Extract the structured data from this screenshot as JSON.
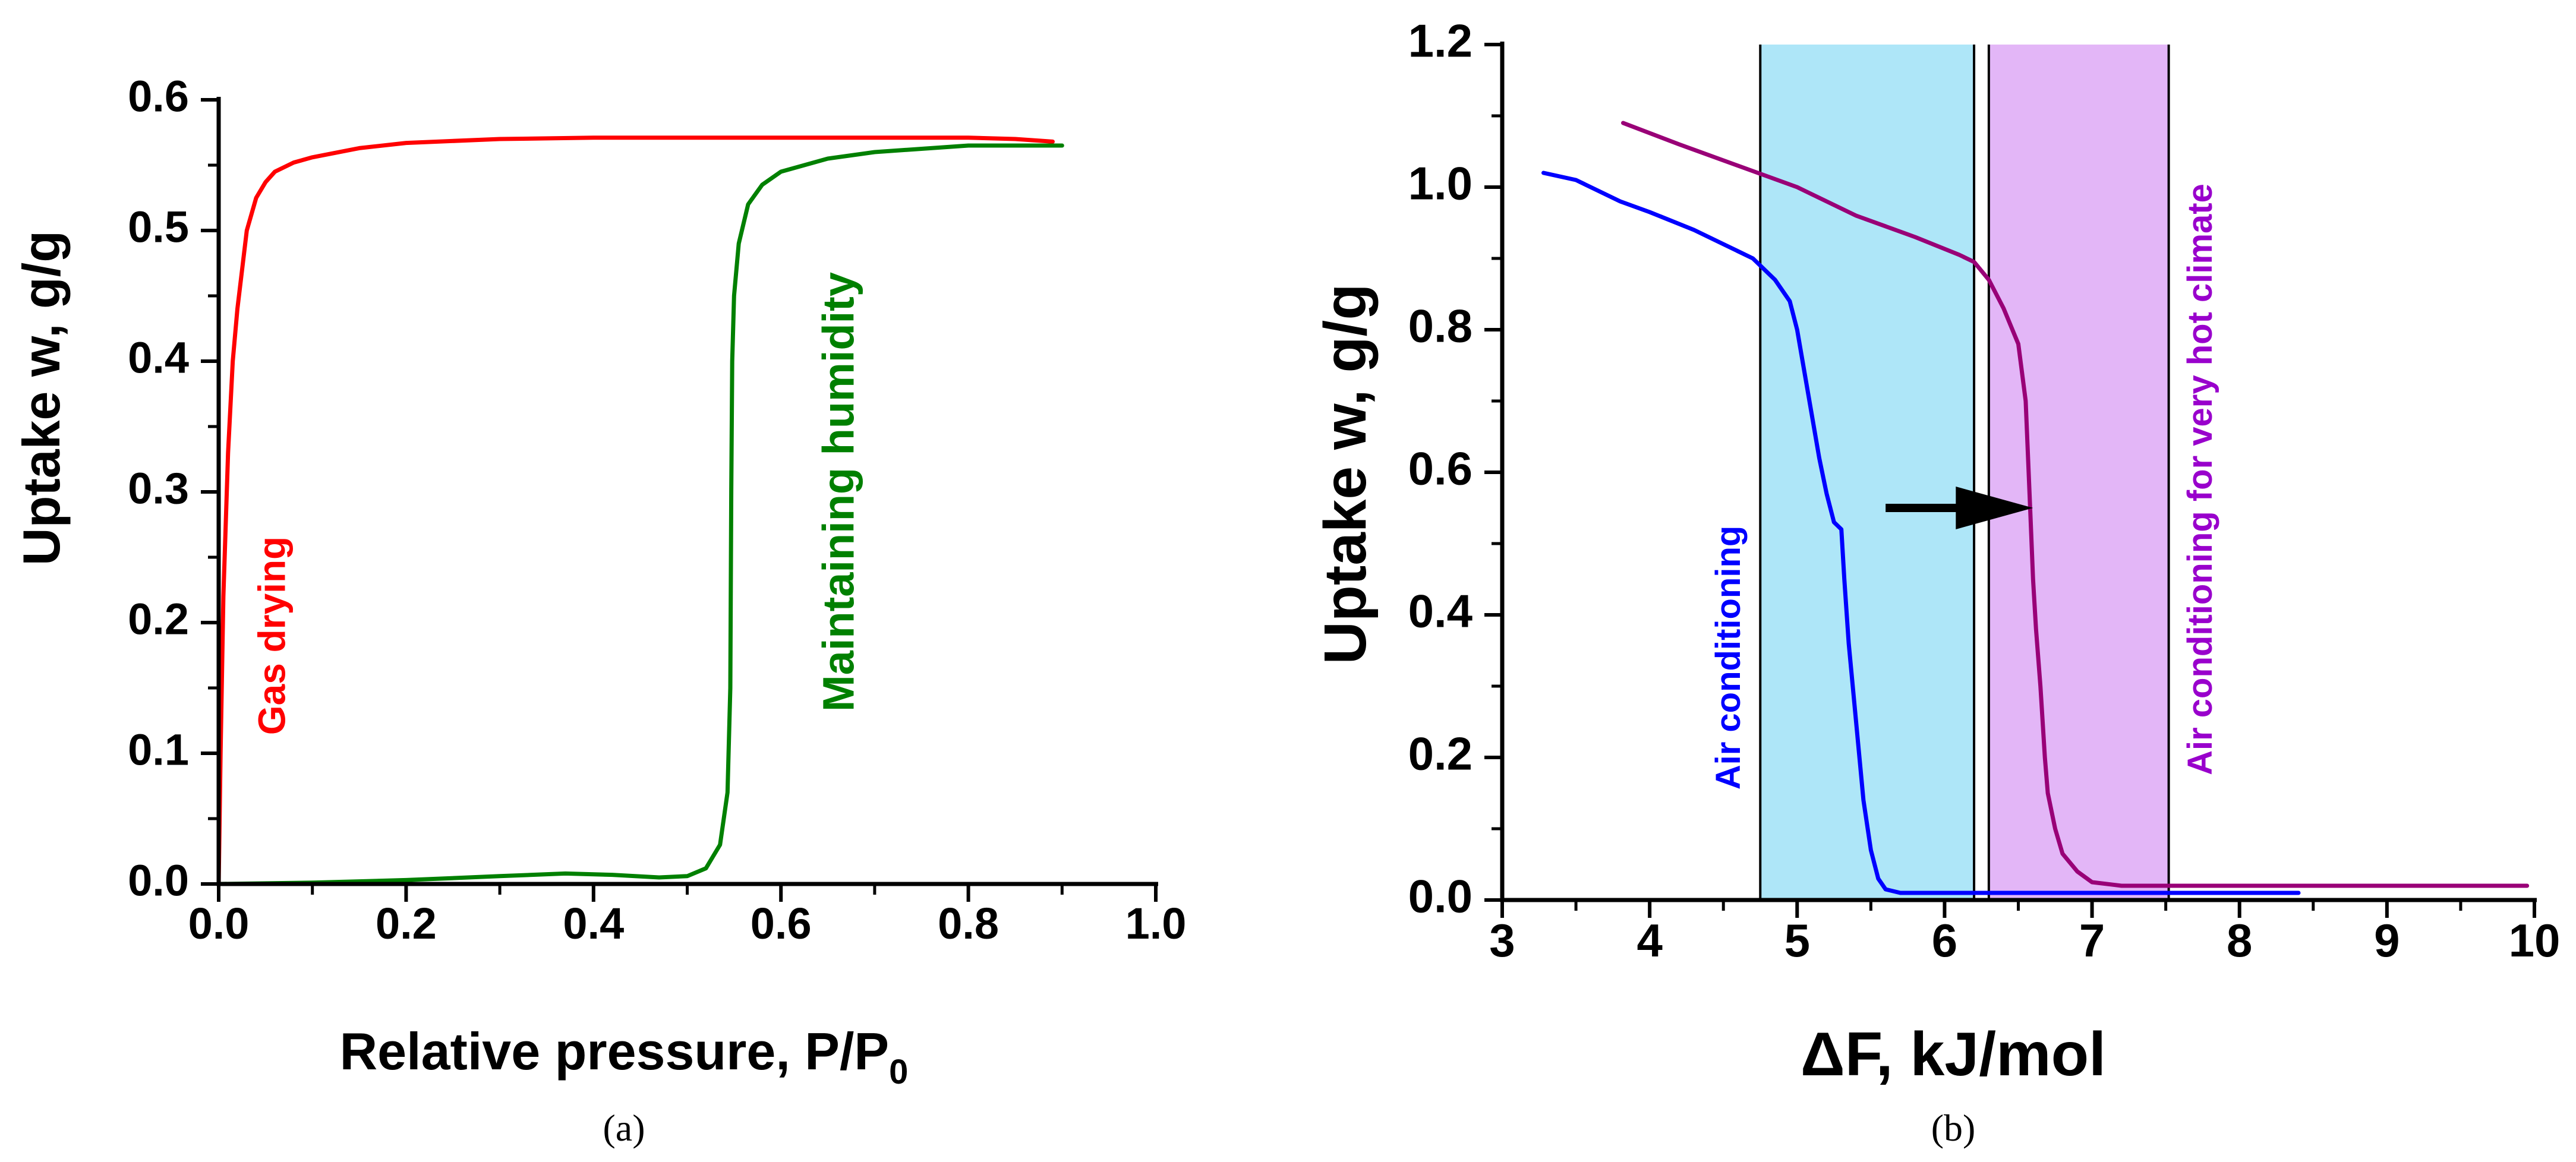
{
  "panel_labels": {
    "a": "(a)",
    "b": "(b)"
  },
  "chart_data": [
    {
      "type": "line",
      "panel": "(a)",
      "title": "",
      "xlabel": "Relative pressure, P/P",
      "xlabel_sub": "0",
      "ylabel": "Uptake w, g/g",
      "xlim": [
        0,
        1.0
      ],
      "ylim": [
        0,
        0.6
      ],
      "xticks": [
        0.0,
        0.2,
        0.4,
        0.6,
        0.8,
        1.0
      ],
      "xtick_labels": [
        "0.0",
        "0.2",
        "0.4",
        "0.6",
        "0.8",
        "1.0"
      ],
      "yticks": [
        0.0,
        0.1,
        0.2,
        0.3,
        0.4,
        0.5,
        0.6
      ],
      "ytick_labels": [
        "0.0",
        "0.1",
        "0.2",
        "0.3",
        "0.4",
        "0.5",
        "0.6"
      ],
      "grid": false,
      "series": [
        {
          "name": "Gas drying",
          "color": "#ff0000",
          "x": [
            0.0,
            0.002,
            0.005,
            0.01,
            0.015,
            0.02,
            0.03,
            0.04,
            0.05,
            0.06,
            0.08,
            0.1,
            0.15,
            0.2,
            0.3,
            0.4,
            0.5,
            0.6,
            0.7,
            0.8,
            0.85,
            0.89
          ],
          "y": [
            0.0,
            0.1,
            0.22,
            0.33,
            0.4,
            0.44,
            0.5,
            0.525,
            0.537,
            0.545,
            0.552,
            0.556,
            0.563,
            0.567,
            0.57,
            0.571,
            0.571,
            0.571,
            0.571,
            0.571,
            0.57,
            0.568
          ]
        },
        {
          "name": "Maintaining humidity",
          "color": "#008000",
          "x": [
            0.0,
            0.1,
            0.2,
            0.3,
            0.37,
            0.42,
            0.47,
            0.5,
            0.52,
            0.535,
            0.543,
            0.546,
            0.547,
            0.548,
            0.55,
            0.555,
            0.565,
            0.58,
            0.6,
            0.65,
            0.7,
            0.8,
            0.9
          ],
          "y": [
            0.0,
            0.001,
            0.003,
            0.006,
            0.008,
            0.007,
            0.005,
            0.006,
            0.012,
            0.03,
            0.07,
            0.15,
            0.3,
            0.4,
            0.45,
            0.49,
            0.52,
            0.535,
            0.545,
            0.555,
            0.56,
            0.565,
            0.565
          ]
        }
      ],
      "annotations": [
        {
          "text": "Gas drying",
          "color": "#ff0000",
          "x": 0.06,
          "y": 0.19,
          "rotation": -90
        },
        {
          "text": "Maintaining humidity",
          "color": "#008000",
          "x": 0.665,
          "y": 0.3,
          "rotation": -90
        }
      ]
    },
    {
      "type": "line",
      "panel": "(b)",
      "title": "",
      "xlabel": "ΔF, kJ/mol",
      "ylabel": "Uptake w, g/g",
      "xlim": [
        3,
        10
      ],
      "ylim": [
        0,
        1.2
      ],
      "xticks": [
        3,
        4,
        5,
        6,
        7,
        8,
        9,
        10
      ],
      "xtick_labels": [
        "3",
        "4",
        "5",
        "6",
        "7",
        "8",
        "9",
        "10"
      ],
      "yticks": [
        0.0,
        0.2,
        0.4,
        0.6,
        0.8,
        1.0,
        1.2
      ],
      "ytick_labels": [
        "0.0",
        "0.2",
        "0.4",
        "0.6",
        "0.8",
        "1.0",
        "1.2"
      ],
      "grid": false,
      "bands": [
        {
          "from": 4.75,
          "to": 6.2,
          "color": "#aee6f8",
          "label": "Air conditioning",
          "label_color": "#0000ff",
          "label_x": 4.55,
          "label_y": 0.34
        },
        {
          "from": 6.3,
          "to": 7.52,
          "color": "#e3b6f7",
          "label": "Air conditioning for very hot climate",
          "label_color": "#9900cc",
          "label_x": 7.75,
          "label_y": 0.59
        }
      ],
      "series": [
        {
          "name": "Air conditioning",
          "color": "#0000ff",
          "x": [
            3.28,
            3.5,
            3.8,
            4.0,
            4.3,
            4.5,
            4.7,
            4.85,
            4.95,
            5.0,
            5.05,
            5.1,
            5.15,
            5.2,
            5.25,
            5.3,
            5.32,
            5.35,
            5.4,
            5.45,
            5.5,
            5.55,
            5.6,
            5.7,
            5.8,
            6.0,
            6.5,
            7.0,
            7.5,
            8.0,
            8.4
          ],
          "y": [
            1.02,
            1.01,
            0.98,
            0.965,
            0.94,
            0.92,
            0.9,
            0.87,
            0.84,
            0.8,
            0.74,
            0.68,
            0.62,
            0.57,
            0.53,
            0.52,
            0.45,
            0.36,
            0.25,
            0.14,
            0.07,
            0.03,
            0.015,
            0.01,
            0.01,
            0.01,
            0.01,
            0.01,
            0.01,
            0.01,
            0.01
          ]
        },
        {
          "name": "Air conditioning for very hot climate",
          "color": "#990077",
          "x": [
            3.82,
            4.2,
            4.6,
            5.0,
            5.4,
            5.8,
            6.1,
            6.2,
            6.3,
            6.4,
            6.5,
            6.55,
            6.58,
            6.6,
            6.62,
            6.65,
            6.68,
            6.7,
            6.75,
            6.8,
            6.9,
            7.0,
            7.2,
            7.5,
            8.0,
            9.0,
            9.95
          ],
          "y": [
            1.09,
            1.06,
            1.03,
            1.0,
            0.96,
            0.93,
            0.905,
            0.895,
            0.87,
            0.83,
            0.78,
            0.7,
            0.55,
            0.45,
            0.38,
            0.3,
            0.2,
            0.15,
            0.1,
            0.065,
            0.04,
            0.025,
            0.02,
            0.02,
            0.02,
            0.02,
            0.02
          ]
        }
      ],
      "arrow": {
        "from": [
          5.6,
          0.55
        ],
        "to": [
          6.6,
          0.55
        ],
        "color": "#000000"
      }
    }
  ]
}
